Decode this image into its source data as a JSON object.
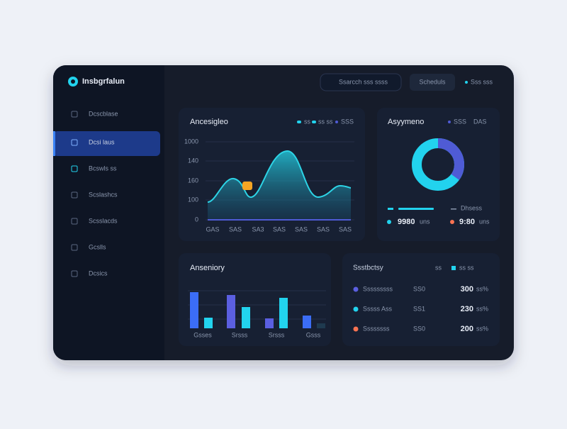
{
  "app": {
    "brand": "Insbgrfalun"
  },
  "topbar": {
    "search": "Ssarcch sss ssss",
    "button": "Scheduls",
    "status": "Sss sss"
  },
  "sidebar": {
    "items": [
      "Dcscblase",
      "Dcsi laus",
      "Bcswls ss",
      "Scslashcs",
      "Scsslacds",
      "Gcslls",
      "Dcsics"
    ]
  },
  "panels": {
    "trend": {
      "title": "Ancesigleo",
      "legend": [
        "ss",
        "ss ss",
        "SSS"
      ],
      "y_labels": [
        "1000",
        "140",
        "160",
        "100",
        "0"
      ],
      "x_labels": [
        "GAS",
        "SAS",
        "SA3",
        "SAS",
        "SAS",
        "SAS",
        "SAS"
      ]
    },
    "share": {
      "title": "Asyymeno",
      "legend": [
        "SSS",
        "DAS"
      ],
      "line_label": "Dhsess",
      "stats": [
        {
          "value": "9980",
          "unit": "uns"
        },
        {
          "value": "9:80",
          "unit": "uns"
        }
      ]
    },
    "activity": {
      "title": "Anseniory",
      "x_labels": [
        "Gsses",
        "Srsss",
        "Srsss",
        "Gsss"
      ]
    },
    "breakdown": {
      "title": "Ssstbctsy",
      "header": [
        "ss",
        "ss ss"
      ],
      "rows": [
        {
          "label": "Sssssssss",
          "code": "SS0",
          "value": "300",
          "pct": "ss%"
        },
        {
          "label": "Sssss Ass",
          "code": "SS1",
          "value": "230",
          "pct": "ss%"
        },
        {
          "label": "Ssssssss",
          "code": "SS0",
          "value": "200",
          "pct": "ss%"
        }
      ]
    }
  }
}
